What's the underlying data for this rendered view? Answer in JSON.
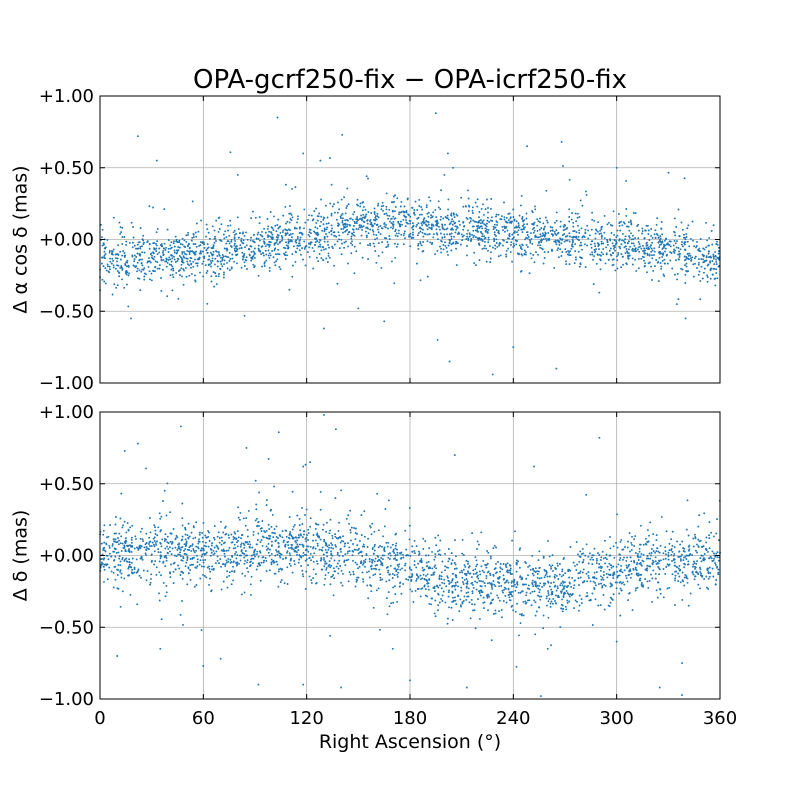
{
  "chart_data": {
    "type": "scatter",
    "title": "OPA-gcrf250-fix − OPA-icrf250-fix",
    "xlabel": "Right Ascension (°)",
    "xlim": [
      0,
      360
    ],
    "x_ticks": [
      0,
      60,
      120,
      180,
      240,
      300,
      360
    ],
    "x_tick_labels": [
      "0",
      "60",
      "120",
      "180",
      "240",
      "300",
      "360"
    ],
    "grid": true,
    "marker_color": "#1f77b4",
    "panels": [
      {
        "name": "ra",
        "ylabel": "Δ α cos δ (mas)",
        "ylim": [
          -1.0,
          1.0
        ],
        "y_ticks": [
          1.0,
          0.5,
          0.0,
          -0.5,
          -1.0
        ],
        "y_tick_labels": [
          "+1.00",
          "+0.50",
          "+0.00",
          "−0.50",
          "−1.00"
        ],
        "model": {
          "description_points_deg": [
            0,
            30,
            60,
            90,
            120,
            150,
            180,
            210,
            240,
            270,
            300,
            330,
            360
          ],
          "mean_mas": [
            -0.14,
            -0.12,
            -0.1,
            -0.05,
            0.02,
            0.1,
            0.12,
            0.06,
            0.03,
            0.0,
            -0.02,
            -0.07,
            -0.14
          ],
          "scatter_mas": 0.09
        },
        "outliers": [
          [
            22,
            0.72
          ],
          [
            103,
            0.85
          ],
          [
            128,
            0.55
          ],
          [
            118,
            0.6
          ],
          [
            195,
            0.88
          ],
          [
            202,
            0.6
          ],
          [
            205,
            0.5
          ],
          [
            200,
            0.45
          ],
          [
            248,
            0.65
          ],
          [
            268,
            0.68
          ],
          [
            33,
            0.55
          ],
          [
            110,
            -0.35
          ],
          [
            130,
            -0.62
          ],
          [
            196,
            -0.7
          ],
          [
            203,
            -0.85
          ],
          [
            228,
            -0.94
          ],
          [
            265,
            -0.9
          ],
          [
            335,
            -0.45
          ],
          [
            340,
            -0.55
          ],
          [
            18,
            -0.55
          ],
          [
            165,
            -0.57
          ],
          [
            240,
            -0.75
          ],
          [
            150,
            -0.48
          ],
          [
            300,
            0.5
          ],
          [
            80,
            0.45
          ]
        ],
        "sample_count": 2600
      },
      {
        "name": "dec",
        "ylabel": "Δ δ (mas)",
        "ylim": [
          -1.0,
          1.0
        ],
        "y_ticks": [
          1.0,
          0.5,
          0.0,
          -0.5,
          -1.0
        ],
        "y_tick_labels": [
          "+1.00",
          "+0.50",
          "+0.00",
          "−0.50",
          "−1.00"
        ],
        "model": {
          "description_points_deg": [
            0,
            30,
            60,
            90,
            120,
            150,
            180,
            210,
            240,
            270,
            300,
            330,
            360
          ],
          "mean_mas": [
            0.02,
            0.02,
            0.02,
            0.04,
            0.06,
            0.0,
            -0.1,
            -0.18,
            -0.2,
            -0.2,
            -0.1,
            -0.06,
            -0.02
          ],
          "scatter_mas": 0.11
        },
        "outliers": [
          [
            47,
            0.9
          ],
          [
            130,
            0.98
          ],
          [
            137,
            0.88
          ],
          [
            22,
            0.78
          ],
          [
            85,
            0.75
          ],
          [
            118,
            0.62
          ],
          [
            122,
            0.65
          ],
          [
            206,
            0.7
          ],
          [
            252,
            0.62
          ],
          [
            290,
            0.82
          ],
          [
            70,
            -0.72
          ],
          [
            92,
            -0.9
          ],
          [
            118,
            -0.9
          ],
          [
            140,
            -0.92
          ],
          [
            180,
            -0.87
          ],
          [
            213,
            -0.92
          ],
          [
            256,
            -0.98
          ],
          [
            260,
            -0.65
          ],
          [
            325,
            -0.92
          ],
          [
            338,
            -0.75
          ],
          [
            10,
            -0.7
          ],
          [
            35,
            -0.65
          ],
          [
            60,
            -0.77
          ],
          [
            170,
            -0.65
          ],
          [
            300,
            -0.6
          ]
        ],
        "sample_count": 2600
      }
    ]
  }
}
